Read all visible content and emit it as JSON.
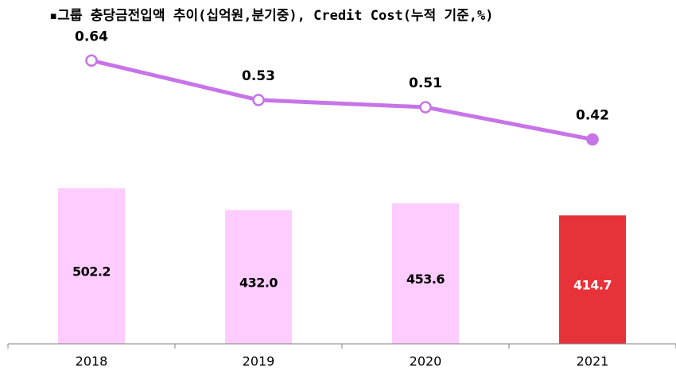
{
  "chart_data": {
    "type": "bar",
    "title": "▪그룹 충당금전입액 추이(십억원,분기중), Credit Cost(누적 기준,%)",
    "categories": [
      "2018",
      "2019",
      "2020",
      "2021"
    ],
    "ylim": [
      0,
      1100
    ],
    "y2lim": [
      -0.15,
      0.8
    ],
    "series": [
      {
        "type": "bar",
        "values": [
          502.2,
          432.0,
          453.6,
          414.7
        ],
        "value_labels": [
          "502.2",
          "432.0",
          "453.6",
          "414.7"
        ],
        "colors": [
          "#ffccff",
          "#ffccff",
          "#ffccff",
          "#e8323a"
        ],
        "label_colors": [
          "#000000",
          "#000000",
          "#000000",
          "#ffffff"
        ]
      },
      {
        "type": "line",
        "axis": "y2",
        "values": [
          0.64,
          0.53,
          0.51,
          0.42
        ],
        "color": "#c774e8",
        "marker_fills": [
          "#ffffff",
          "#ffffff",
          "#ffffff",
          "#c774e8"
        ]
      }
    ]
  }
}
